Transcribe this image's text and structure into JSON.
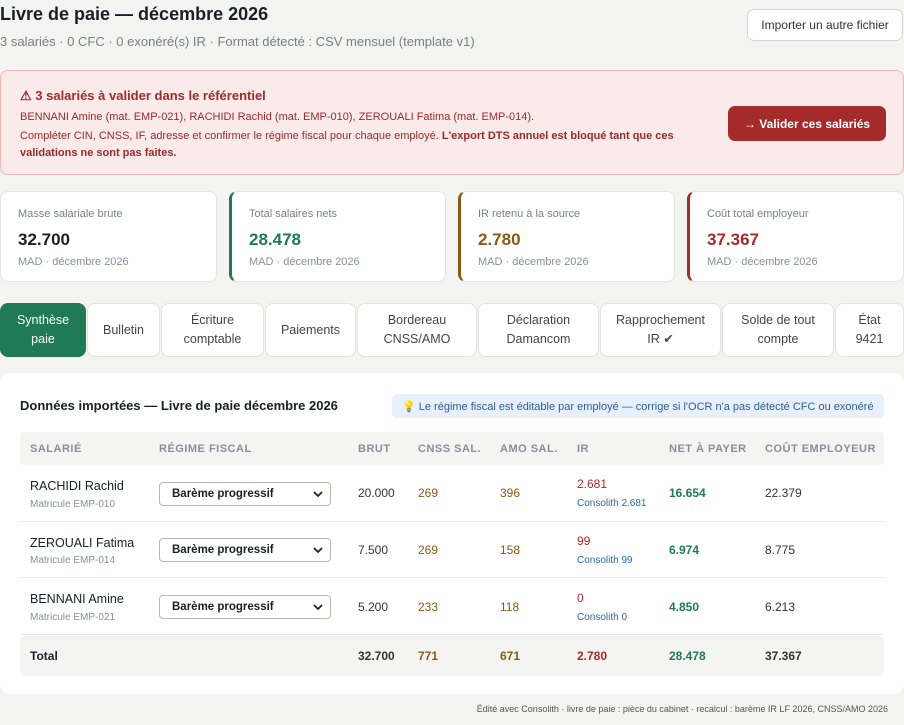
{
  "header": {
    "title": "Livre de paie — décembre 2026",
    "subtitle": "3 salariés · 0 CFC · 0 exonéré(s) IR · Format détecté : CSV mensuel (template v1)",
    "import_button": "Importer un autre fichier"
  },
  "alert": {
    "title": "⚠ 3 salariés à valider dans le référentiel",
    "line1": "BENNANI Amine (mat. EMP-021), RACHIDI Rachid (mat. EMP-010), ZEROUALI Fatima (mat. EMP-014).",
    "line2_normal": "Compléter CIN, CNSS, IF, adresse et confirmer le régime fiscal pour chaque employé. ",
    "line2_bold": "L'export DTS annuel est bloqué tant que ces validations ne sont pas faites.",
    "button": "→ Valider ces salariés"
  },
  "kpis": [
    {
      "label": "Masse salariale brute",
      "value": "32.700",
      "sub": "MAD · décembre 2026",
      "color": "#1b1f24"
    },
    {
      "label": "Total salaires nets",
      "value": "28.478",
      "sub": "MAD · décembre 2026",
      "color": "#1f7a55"
    },
    {
      "label": "IR retenu à la source",
      "value": "2.780",
      "sub": "MAD · décembre 2026",
      "color": "#8a5a14"
    },
    {
      "label": "Coût total employeur",
      "value": "37.367",
      "sub": "MAD · décembre 2026",
      "color": "#a52a2a"
    }
  ],
  "tabs": [
    {
      "label": "Synthèse\npaie"
    },
    {
      "label": "Bulletin"
    },
    {
      "label": "Écriture\ncomptable"
    },
    {
      "label": "Paiements"
    },
    {
      "label": "Bordereau\nCNSS/AMO"
    },
    {
      "label": "Déclaration\nDamancom"
    },
    {
      "label": "Rapprochement\nIR ✔"
    },
    {
      "label": "Solde de tout\ncompte"
    },
    {
      "label": "État\n9421"
    }
  ],
  "panel": {
    "title": "Données importées — Livre de paie décembre 2026",
    "hint": "💡 Le régime fiscal est éditable par employé — corrige si l'OCR n'a pas détecté CFC ou exonéré"
  },
  "table": {
    "headers": [
      "SALARIÉ",
      "RÉGIME FISCAL",
      "BRUT",
      "CNSS SAL.",
      "AMO SAL.",
      "IR",
      "NET À PAYER",
      "COÛT EMPLOYEUR"
    ],
    "rows": [
      {
        "name": "RACHIDI Rachid",
        "mat": "Matricule EMP-010",
        "regime": "Barème progressif",
        "brut": "20.000",
        "cnss": "269",
        "amo": "396",
        "ir": "2.681",
        "consol": "Consolith 2.681",
        "net": "16.654",
        "cout": "22.379"
      },
      {
        "name": "ZEROUALI Fatima",
        "mat": "Matricule EMP-014",
        "regime": "Barème progressif",
        "brut": "7.500",
        "cnss": "269",
        "amo": "158",
        "ir": "99",
        "consol": "Consolith 99",
        "net": "6.974",
        "cout": "8.775"
      },
      {
        "name": "BENNANI Amine",
        "mat": "Matricule EMP-021",
        "regime": "Barème progressif",
        "brut": "5.200",
        "cnss": "233",
        "amo": "118",
        "ir": "0",
        "consol": "Consolith 0",
        "net": "4.850",
        "cout": "6.213"
      }
    ],
    "total": {
      "label": "Total",
      "brut": "32.700",
      "cnss": "771",
      "amo": "671",
      "ir": "2.780",
      "net": "28.478",
      "cout": "37.367"
    }
  },
  "footer": "Édité avec Consolith · livre de paie : pièce du cabinet · recalcul : barème IR LF 2026, CNSS/AMO 2026"
}
